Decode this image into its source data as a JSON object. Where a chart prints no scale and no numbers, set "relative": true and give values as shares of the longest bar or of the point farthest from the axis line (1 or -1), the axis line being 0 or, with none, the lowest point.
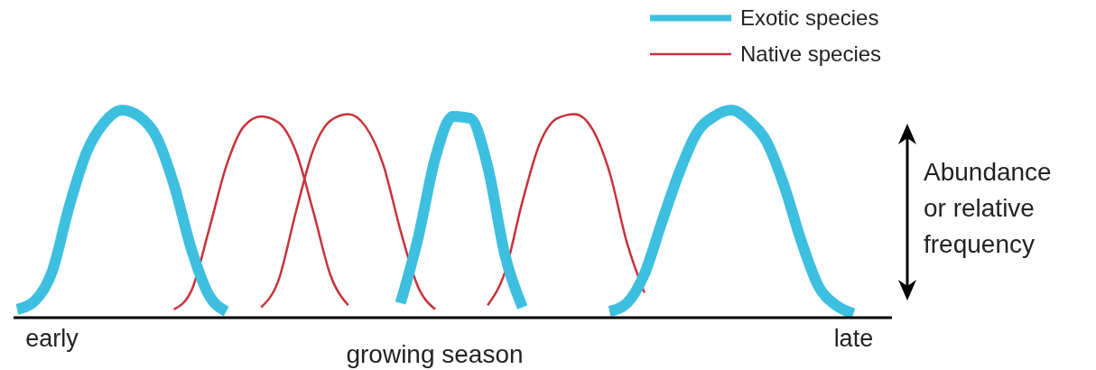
{
  "chart_data": {
    "type": "line",
    "relative": true,
    "xlabel": "growing season",
    "ylabel": "Abundance or relative frequency",
    "categories": [
      null,
      null,
      "early",
      null,
      null,
      null,
      null,
      null,
      null,
      null,
      null,
      null,
      null,
      null,
      null,
      null,
      null,
      null,
      null,
      null,
      null,
      null,
      null,
      null,
      null,
      null,
      null,
      null,
      null,
      null,
      null,
      null,
      null,
      null,
      null,
      null,
      null,
      null,
      null,
      null,
      null,
      null,
      null,
      null,
      null,
      null,
      null,
      null,
      "late",
      null,
      null
    ],
    "legend": "top right",
    "marker": "none",
    "line_style": "solid",
    "series": [
      {
        "name": "Exotic species",
        "color": "#3dbfe0",
        "values": [
          0.04,
          0.08,
          0.22,
          0.54,
          0.8,
          0.94,
          1,
          0.97,
          0.87,
          0.64,
          0.33,
          0.11,
          0.03,
          null,
          null,
          null,
          null,
          null,
          null,
          null,
          null,
          null,
          0.07,
          0.38,
          0.77,
          0.97,
          0.96,
          0.73,
          0.3,
          0.05,
          null,
          null,
          null,
          null,
          0.03,
          0.07,
          0.21,
          0.46,
          0.7,
          0.89,
          0.97,
          1,
          0.95,
          0.85,
          0.64,
          0.37,
          0.15,
          0.06,
          0.02,
          null,
          null
        ]
      },
      {
        "name": "Native species",
        "color": "#c8323a",
        "values": [
          null,
          null,
          null,
          null,
          null,
          null,
          null,
          null,
          null,
          0.04,
          0.13,
          0.42,
          0.73,
          0.92,
          0.97,
          0.94,
          0.8,
          0.51,
          0.2,
          0.06,
          null,
          null,
          null,
          null,
          null,
          null,
          null,
          0.06,
          0.22,
          0.56,
          0.84,
          0.96,
          0.98,
          0.91,
          0.7,
          0.36,
          0.12,
          null,
          null,
          null,
          null,
          null,
          null,
          null,
          null,
          null,
          null,
          null,
          null,
          null,
          null
        ]
      },
      {
        "color": "#c8323a",
        "values": [
          null,
          null,
          null,
          null,
          null,
          null,
          null,
          null,
          null,
          null,
          null,
          null,
          null,
          null,
          0.05,
          0.18,
          0.51,
          0.81,
          0.95,
          0.98,
          0.92,
          0.74,
          0.42,
          0.15,
          0.04,
          null,
          null,
          null,
          null,
          null,
          null,
          null,
          null,
          null,
          null,
          null,
          null,
          null,
          null,
          null,
          null,
          null,
          null,
          null,
          null,
          null,
          null,
          null,
          null,
          null,
          null
        ]
      }
    ]
  }
}
